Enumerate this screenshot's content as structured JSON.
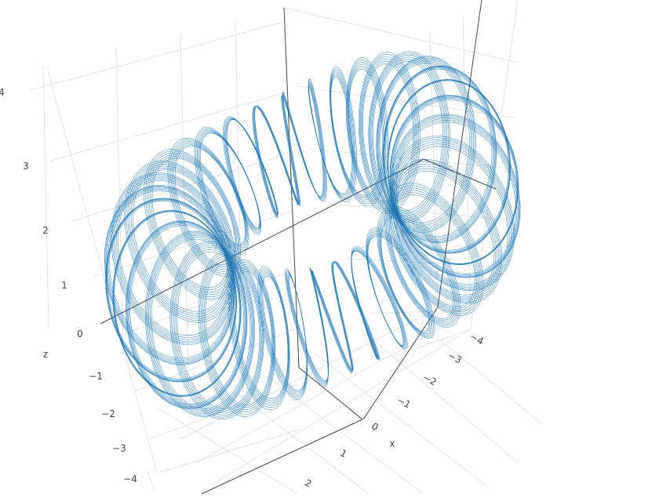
{
  "chart_data": {
    "type": "line3d",
    "title": "",
    "axes": {
      "x": {
        "label": "x",
        "ticks": [
          -4,
          -3,
          -2,
          -1,
          0,
          1,
          2
        ],
        "range": [
          -4.4,
          2.6
        ]
      },
      "y": {
        "label": "",
        "ticks": [],
        "range": [
          -4.4,
          4.4
        ]
      },
      "z": {
        "label": "z",
        "ticks": [
          -4,
          -3,
          -2,
          -1,
          0,
          1,
          2,
          3,
          4
        ],
        "range": [
          -4.4,
          4.4
        ]
      }
    },
    "grid": true,
    "legend": "none",
    "series": [
      {
        "type": "toroidal-helix",
        "major_radius": 3,
        "minor_radius": 1,
        "turns": 36,
        "strands": 6,
        "strand_phase_step": 0.12,
        "color": "#1f77b4"
      }
    ]
  }
}
